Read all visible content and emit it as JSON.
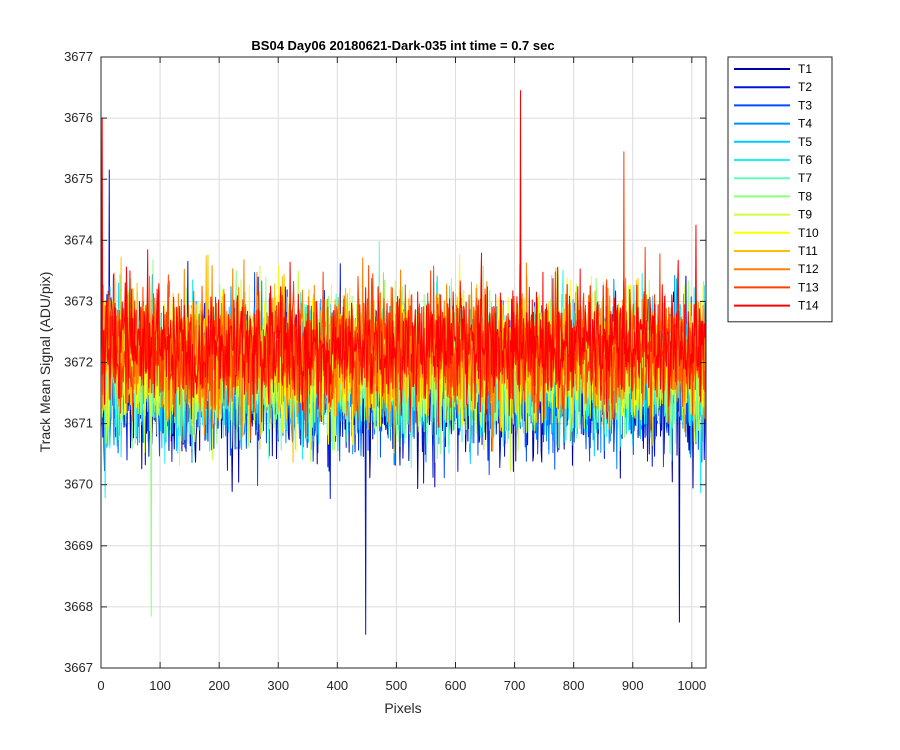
{
  "chart_data": {
    "type": "line",
    "title": "BS04 Day06 20180621-Dark-035 int time = 0.7 sec",
    "xlabel": "Pixels",
    "ylabel": "Track Mean Signal (ADU/pix)",
    "xlim": [
      0,
      1024
    ],
    "ylim": [
      3667,
      3677
    ],
    "xticks": [
      0,
      100,
      200,
      300,
      400,
      500,
      600,
      700,
      800,
      900,
      1000
    ],
    "yticks": [
      3667,
      3668,
      3669,
      3670,
      3671,
      3672,
      3673,
      3674,
      3675,
      3676,
      3677
    ],
    "grid": true,
    "legend_position": "outside-top-right",
    "n_points": 1024,
    "noise_note_mean": 3672,
    "series": [
      {
        "name": "T1",
        "color": "#0000a8",
        "mean": 3671.6,
        "spread": 0.95
      },
      {
        "name": "T2",
        "color": "#0016d8",
        "mean": 3671.65,
        "spread": 0.92
      },
      {
        "name": "T3",
        "color": "#0050ff",
        "mean": 3671.7,
        "spread": 0.9
      },
      {
        "name": "T4",
        "color": "#0090ff",
        "mean": 3671.75,
        "spread": 0.9
      },
      {
        "name": "T5",
        "color": "#00c8ff",
        "mean": 3671.8,
        "spread": 0.88
      },
      {
        "name": "T6",
        "color": "#22f0f0",
        "mean": 3671.85,
        "spread": 0.88
      },
      {
        "name": "T7",
        "color": "#60ffc0",
        "mean": 3671.9,
        "spread": 0.86
      },
      {
        "name": "T8",
        "color": "#90ff80",
        "mean": 3671.95,
        "spread": 0.86
      },
      {
        "name": "T9",
        "color": "#c8ff40",
        "mean": 3672.0,
        "spread": 0.84
      },
      {
        "name": "T10",
        "color": "#ffff00",
        "mean": 3672.05,
        "spread": 0.84
      },
      {
        "name": "T11",
        "color": "#ffc000",
        "mean": 3672.1,
        "spread": 0.82
      },
      {
        "name": "T12",
        "color": "#ff8000",
        "mean": 3672.15,
        "spread": 0.82
      },
      {
        "name": "T13",
        "color": "#ff4000",
        "mean": 3672.2,
        "spread": 0.8
      },
      {
        "name": "T14",
        "color": "#ff0000",
        "mean": 3672.25,
        "spread": 0.8
      }
    ],
    "notable_points": [
      {
        "series": "T14",
        "x": 710,
        "y": 3676.45
      },
      {
        "series": "T13",
        "x": 885,
        "y": 3675.45
      },
      {
        "series": "T14",
        "x": 2,
        "y": 3676.0
      },
      {
        "series": "T2",
        "x": 448,
        "y": 3667.55
      },
      {
        "series": "T1",
        "x": 979,
        "y": 3667.75
      },
      {
        "series": "T8",
        "x": 85,
        "y": 3667.85
      },
      {
        "series": "T2",
        "x": 14,
        "y": 3675.15
      }
    ]
  }
}
